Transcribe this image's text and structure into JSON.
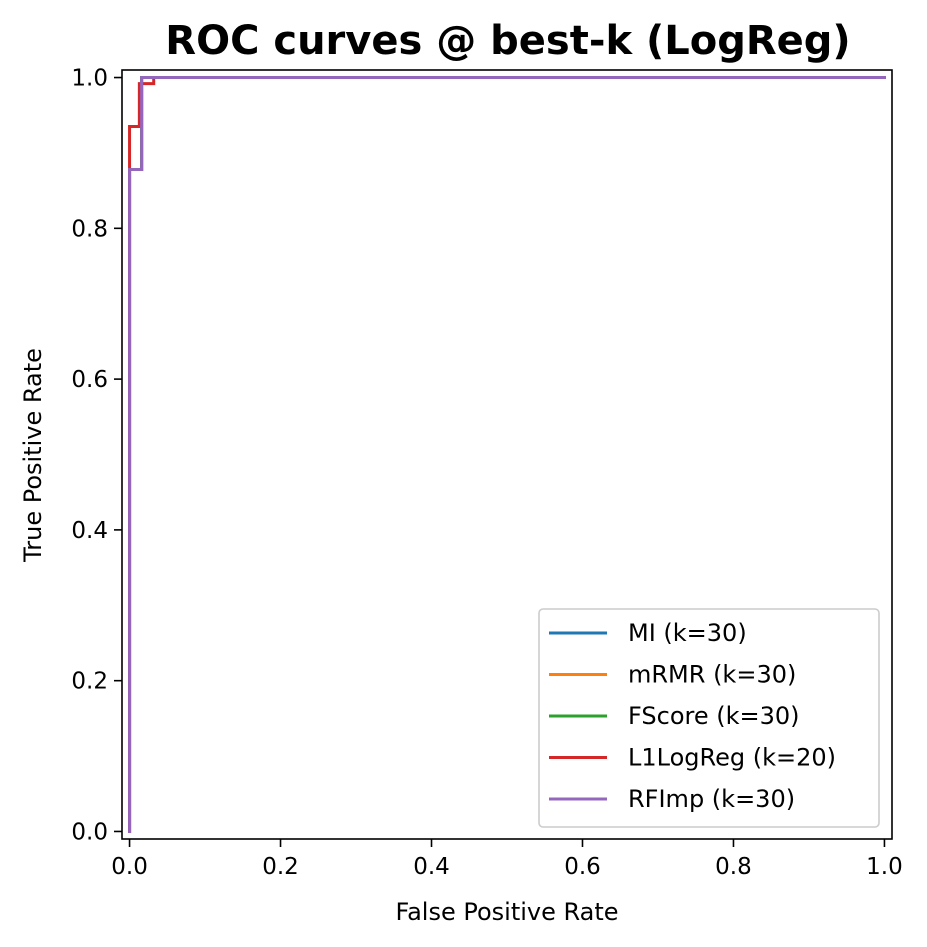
{
  "chart_data": {
    "type": "line",
    "title": "ROC curves @ best-k (LogReg)",
    "xlabel": "False Positive Rate",
    "ylabel": "True Positive Rate",
    "xlim": [
      -0.01,
      1.01
    ],
    "ylim": [
      -0.01,
      1.01
    ],
    "xticks": [
      0.0,
      0.2,
      0.4,
      0.6,
      0.8,
      1.0
    ],
    "yticks": [
      0.0,
      0.2,
      0.4,
      0.6,
      0.8,
      1.0
    ],
    "xtick_labels": [
      "0.0",
      "0.2",
      "0.4",
      "0.6",
      "0.8",
      "1.0"
    ],
    "ytick_labels": [
      "0.0",
      "0.2",
      "0.4",
      "0.6",
      "0.8",
      "1.0"
    ],
    "grid": false,
    "legend_position": "lower-right",
    "series": [
      {
        "name": "MI (k=30)",
        "color": "#1f77b4",
        "x": [
          0.0,
          0.0,
          0.016,
          0.016,
          1.0
        ],
        "y": [
          0.0,
          0.878,
          0.878,
          1.0,
          1.0
        ]
      },
      {
        "name": "mRMR (k=30)",
        "color": "#ff7f0e",
        "x": [
          0.0,
          0.0,
          0.016,
          0.016,
          1.0
        ],
        "y": [
          0.0,
          0.878,
          0.878,
          1.0,
          1.0
        ]
      },
      {
        "name": "FScore (k=30)",
        "color": "#2ca02c",
        "x": [
          0.0,
          0.0,
          0.016,
          0.016,
          1.0
        ],
        "y": [
          0.0,
          0.878,
          0.878,
          1.0,
          1.0
        ]
      },
      {
        "name": "L1LogReg (k=20)",
        "color": "#d62728",
        "x": [
          0.0,
          0.0,
          0.0,
          0.013,
          0.013,
          0.032,
          0.032,
          1.0
        ],
        "y": [
          0.0,
          0.878,
          0.935,
          0.935,
          0.992,
          0.992,
          1.0,
          1.0
        ]
      },
      {
        "name": "RFImp (k=30)",
        "color": "#9467bd",
        "x": [
          0.0,
          0.0,
          0.016,
          0.016,
          1.0
        ],
        "y": [
          0.0,
          0.878,
          0.878,
          1.0,
          1.0
        ]
      }
    ]
  }
}
